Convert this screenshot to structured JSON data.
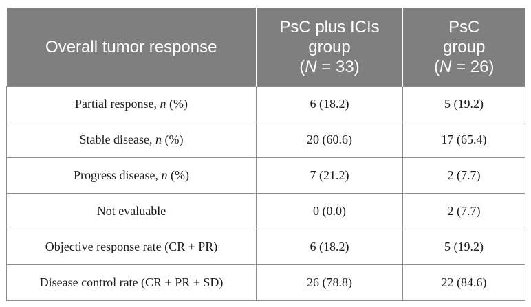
{
  "table": {
    "header": {
      "col1": "Overall tumor response",
      "col2": {
        "line1": "PsC plus ICIs",
        "line2": "group",
        "n_open": "(",
        "n_var": "N",
        "n_close": " = 33)"
      },
      "col3": {
        "line1": "PsC",
        "line2": "group",
        "n_open": "(",
        "n_var": "N",
        "n_close": " = 26)"
      }
    },
    "rows": [
      {
        "label": "Partial response, ",
        "n": "n",
        "suffix": " (%)",
        "ici": "6 (18.2)",
        "psc": "5 (19.2)"
      },
      {
        "label": "Stable disease, ",
        "n": "n",
        "suffix": " (%)",
        "ici": "20 (60.6)",
        "psc": "17 (65.4)"
      },
      {
        "label": "Progress disease, ",
        "n": "n",
        "suffix": " (%)",
        "ici": "7 (21.2)",
        "psc": "2 (7.7)"
      },
      {
        "label": "Not evaluable",
        "n": "",
        "suffix": "",
        "ici": "0 (0.0)",
        "psc": "2 (7.7)"
      },
      {
        "label": "Objective response rate (CR + PR)",
        "n": "",
        "suffix": "",
        "ici": "6 (18.2)",
        "psc": "5 (19.2)"
      },
      {
        "label": "Disease control rate (CR + PR + SD)",
        "n": "",
        "suffix": "",
        "ici": "26 (78.8)",
        "psc": "22 (84.6)"
      }
    ]
  }
}
